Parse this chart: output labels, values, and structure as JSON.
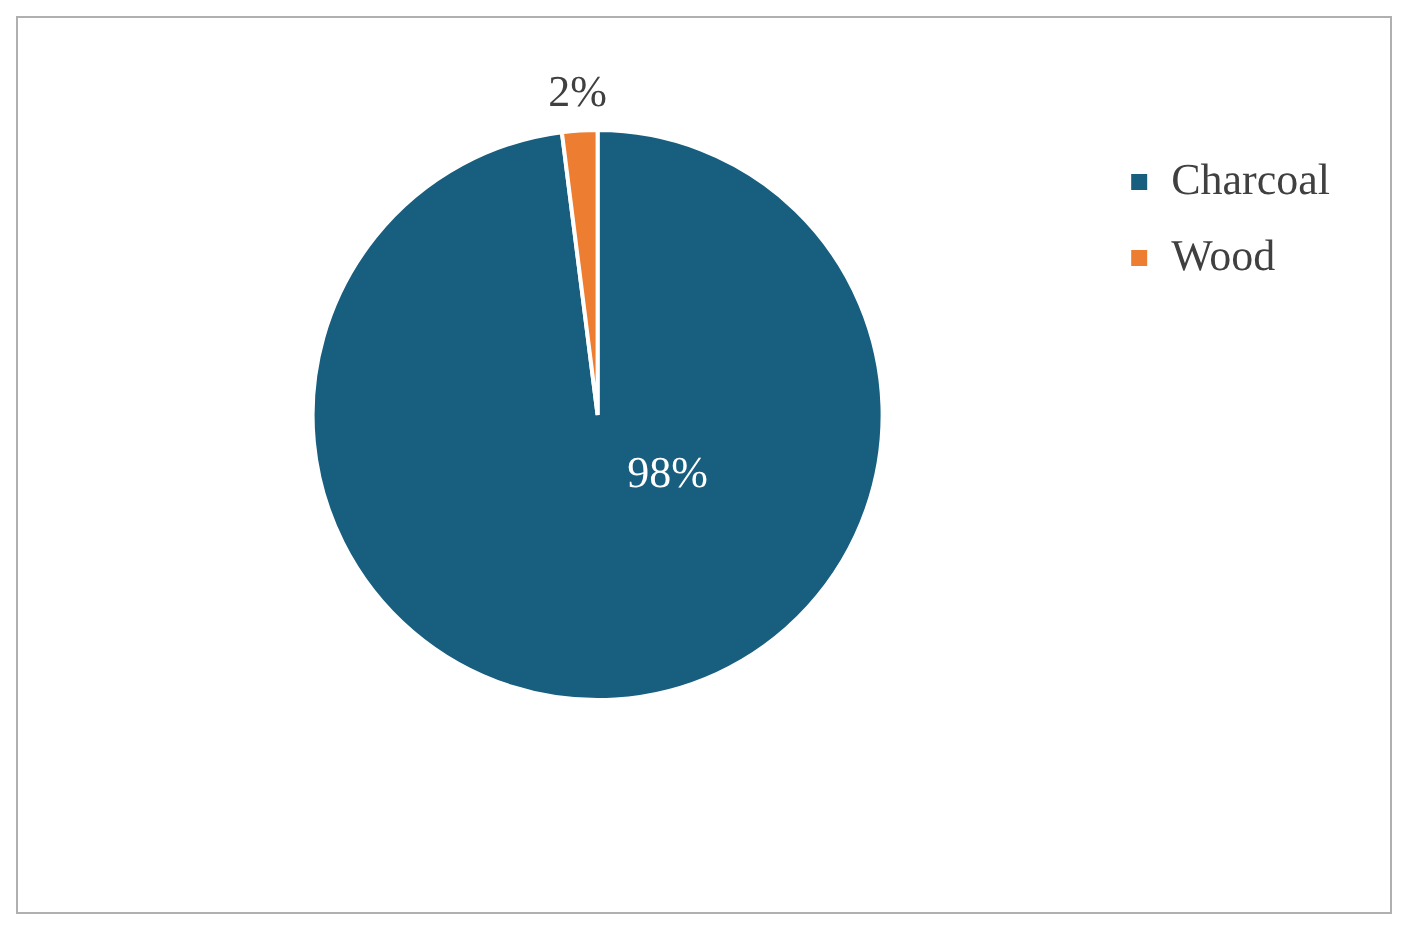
{
  "chart_data": {
    "type": "pie",
    "categories": [
      "Charcoal",
      "Wood"
    ],
    "values": [
      98,
      2
    ],
    "colors": [
      "#175e7f",
      "#ed7d31"
    ],
    "value_labels": [
      "98%",
      "2%"
    ],
    "legend": "top right"
  }
}
